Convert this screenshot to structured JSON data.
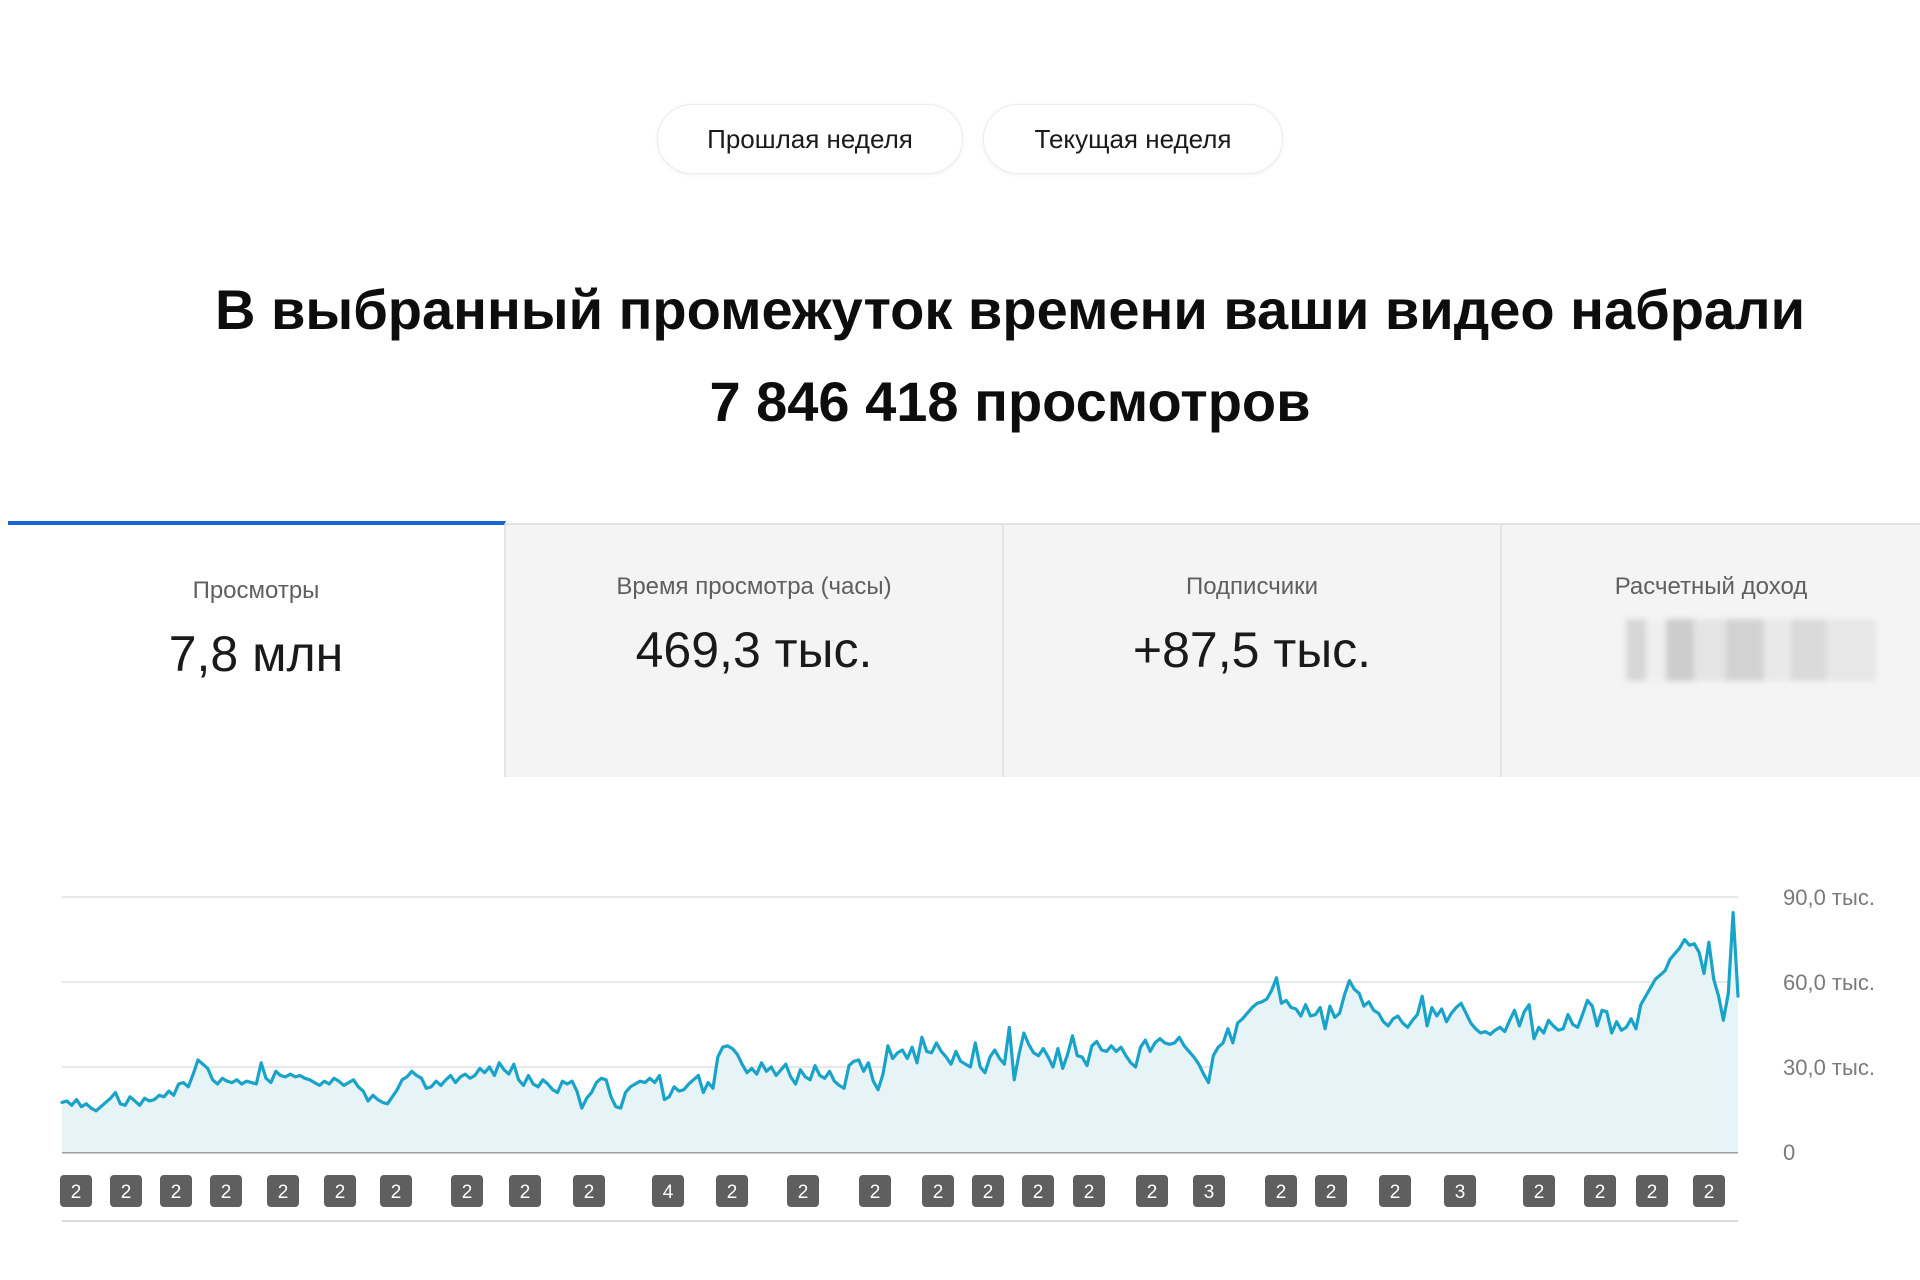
{
  "period_toggle": {
    "previous_week": "Прошлая неделя",
    "current_week": "Текущая неделя"
  },
  "headline": {
    "line1": "В выбранный промежуток времени ваши видео набрали",
    "line2": "7 846 418 просмотров"
  },
  "metrics": [
    {
      "label": "Просмотры",
      "value": "7,8 млн",
      "active": true
    },
    {
      "label": "Время просмотра (часы)",
      "value": "469,3 тыс.",
      "active": false
    },
    {
      "label": "Подписчики",
      "value": "+87,5 тыс.",
      "active": false
    },
    {
      "label": "Расчетный доход",
      "value": "",
      "blurred": true,
      "active": false
    }
  ],
  "colors": {
    "line": "#1aa3c8",
    "fill": "#e6f4f8",
    "active_tab_border": "#1967d2",
    "marker": "#5f5f5f"
  },
  "chart_data": {
    "type": "area",
    "title": "",
    "xlabel": "",
    "ylabel": "",
    "ylim": [
      0,
      90000
    ],
    "y_ticks": [
      "0",
      "30,0 тыс.",
      "60,0 тыс.",
      "90,0 тыс."
    ],
    "y_tick_values": [
      0,
      30000,
      60000,
      90000
    ],
    "grid": true,
    "series": [
      {
        "values": [
          17500,
          18000,
          16500,
          18500,
          16000,
          17000,
          15500,
          14500,
          16000,
          17500,
          19000,
          21000,
          17000,
          16500,
          19500,
          18000,
          16500,
          19000,
          18000,
          18500,
          20000,
          19500,
          21500,
          20000,
          24000,
          24500,
          23000,
          27500,
          32500,
          31000,
          29500,
          25500,
          24000,
          26000,
          25000,
          24500,
          25500,
          24000,
          25000,
          24500,
          24000,
          31500,
          26000,
          24500,
          28500,
          27000,
          26500,
          27500,
          26500,
          27000,
          26000,
          25500,
          24500,
          23500,
          25000,
          24000,
          26000,
          25000,
          23500,
          24500,
          25500,
          23000,
          21500,
          18000,
          20000,
          18500,
          17500,
          17000,
          19500,
          22000,
          25500,
          26500,
          28500,
          27000,
          26000,
          22500,
          23000,
          25000,
          23500,
          25500,
          27000,
          24500,
          26500,
          27500,
          26000,
          27000,
          29500,
          28000,
          30000,
          27000,
          31500,
          29000,
          27500,
          31000,
          25500,
          23500,
          27000,
          24000,
          23000,
          25500,
          24000,
          22000,
          21000,
          25000,
          24000,
          25000,
          21500,
          15500,
          19000,
          21000,
          24500,
          26000,
          25500,
          19500,
          16000,
          15500,
          21000,
          23000,
          24000,
          25000,
          24500,
          26000,
          24500,
          27000,
          18500,
          19500,
          23000,
          21500,
          22000,
          24000,
          25500,
          27000,
          21000,
          24500,
          22500,
          33500,
          37000,
          37500,
          36500,
          34500,
          31000,
          28000,
          29500,
          27500,
          31500,
          28500,
          30000,
          27000,
          29000,
          31000,
          26500,
          24000,
          29000,
          26500,
          25500,
          30500,
          27000,
          26000,
          28500,
          25000,
          23500,
          22500,
          30500,
          32000,
          32500,
          28500,
          31500,
          25000,
          22000,
          27500,
          37500,
          33000,
          35000,
          36000,
          33000,
          37000,
          31500,
          40500,
          35500,
          35000,
          38500,
          35500,
          33500,
          31000,
          35500,
          32000,
          31000,
          30000,
          38500,
          30000,
          28000,
          33500,
          36000,
          33000,
          31000,
          44000,
          25500,
          34500,
          42000,
          38000,
          35000,
          34000,
          36500,
          33500,
          30000,
          36500,
          29500,
          34500,
          41000,
          34000,
          33500,
          30500,
          37500,
          39000,
          36000,
          35500,
          37500,
          35500,
          37000,
          34000,
          31500,
          30000,
          37000,
          39500,
          35500,
          38500,
          40000,
          38500,
          38000,
          38500,
          40500,
          37500,
          35500,
          33500,
          31000,
          27500,
          24500,
          34000,
          37000,
          38500,
          43500,
          38500,
          45500,
          47000,
          49000,
          51000,
          52500,
          53000,
          54000,
          57000,
          61500,
          52500,
          53500,
          51000,
          50500,
          48000,
          52000,
          48000,
          48500,
          51000,
          43500,
          51500,
          47500,
          49000,
          55500,
          60500,
          57500,
          56000,
          51500,
          53000,
          50000,
          49000,
          46000,
          44500,
          47000,
          48000,
          45500,
          44000,
          46500,
          48500,
          55000,
          44500,
          51000,
          48000,
          50500,
          46000,
          49000,
          51000,
          52500,
          49000,
          45500,
          43500,
          42000,
          42500,
          41500,
          43000,
          44000,
          42500,
          46500,
          50000,
          44500,
          49500,
          52000,
          40000,
          44000,
          42000,
          46500,
          44500,
          43000,
          43500,
          48500,
          45000,
          44000,
          48500,
          53500,
          51500,
          44500,
          50000,
          49500,
          42000,
          46000,
          43000,
          44000,
          47000,
          43500,
          52000,
          55000,
          58000,
          61000,
          62500,
          64000,
          68000,
          70000,
          72000,
          75000,
          73000,
          73500,
          70500,
          63000,
          74000,
          61000,
          55000,
          46500,
          56000,
          84500,
          55000
        ]
      }
    ],
    "annotation_markers": [
      "2",
      "2",
      "2",
      "2",
      "2",
      "2",
      "2",
      "2",
      "2",
      "2",
      "4",
      "2",
      "2",
      "2",
      "2",
      "2",
      "2",
      "2",
      "2",
      "3",
      "2",
      "2",
      "2",
      "3",
      "2",
      "2",
      "2",
      "2"
    ]
  }
}
